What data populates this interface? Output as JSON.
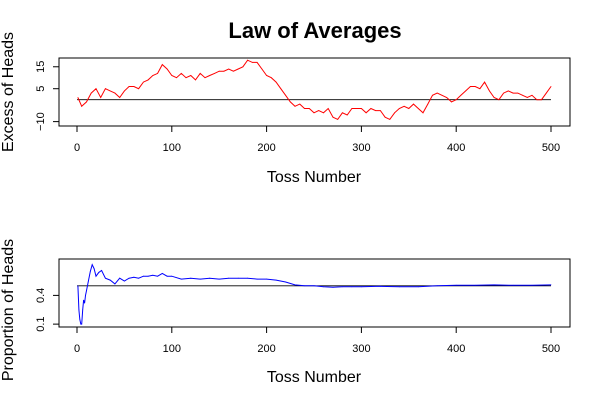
{
  "chart_data": [
    {
      "type": "line",
      "title": "Law of Averages",
      "xlabel": "Toss Number",
      "ylabel": "Excess of Heads",
      "xlim": [
        0,
        500
      ],
      "ylim": [
        -12,
        19
      ],
      "x_ticks": [
        0,
        100,
        200,
        300,
        400,
        500
      ],
      "y_ticks": [
        -10,
        5,
        15
      ],
      "reference_line": 0,
      "series": [
        {
          "color": "#ff0000",
          "x": [
            1,
            5,
            10,
            15,
            20,
            25,
            30,
            35,
            40,
            45,
            50,
            55,
            60,
            65,
            70,
            75,
            80,
            85,
            90,
            95,
            100,
            105,
            110,
            115,
            120,
            125,
            130,
            135,
            140,
            145,
            150,
            155,
            160,
            165,
            170,
            175,
            180,
            185,
            190,
            195,
            200,
            205,
            210,
            215,
            220,
            225,
            230,
            235,
            240,
            245,
            250,
            255,
            260,
            265,
            270,
            275,
            280,
            285,
            290,
            295,
            300,
            305,
            310,
            315,
            320,
            325,
            330,
            335,
            340,
            345,
            350,
            355,
            360,
            365,
            370,
            375,
            380,
            385,
            390,
            395,
            400,
            405,
            410,
            415,
            420,
            425,
            430,
            435,
            440,
            445,
            450,
            455,
            460,
            465,
            470,
            475,
            480,
            485,
            490,
            495,
            500
          ],
          "y": [
            1,
            -3,
            -1,
            3,
            5,
            1,
            5,
            4,
            3,
            1,
            4,
            6,
            6,
            5,
            8,
            9,
            11,
            12,
            16,
            14,
            11,
            10,
            12,
            10,
            11,
            9,
            12,
            10,
            11,
            12,
            13,
            13,
            14,
            13,
            14,
            15,
            18,
            17,
            17,
            14,
            11,
            10,
            8,
            5,
            2,
            -1,
            -3,
            -2,
            -4,
            -4,
            -6,
            -5,
            -6,
            -4,
            -8,
            -9,
            -6,
            -7,
            -4,
            -4,
            -4,
            -6,
            -4,
            -5,
            -5,
            -8,
            -9,
            -6,
            -4,
            -3,
            -4,
            -2,
            -4,
            -6,
            -2,
            2,
            3,
            2,
            1,
            -1,
            0,
            2,
            4,
            6,
            6,
            5,
            8,
            4,
            1,
            0,
            3,
            4,
            3,
            3,
            2,
            1,
            2,
            0,
            0,
            3,
            6
          ]
        }
      ]
    },
    {
      "type": "line",
      "title": "",
      "xlabel": "Toss Number",
      "ylabel": "Proportion of Heads",
      "xlim": [
        0,
        500
      ],
      "ylim": [
        0.07,
        0.78
      ],
      "x_ticks": [
        0,
        100,
        200,
        300,
        400,
        500
      ],
      "y_ticks": [
        0.1,
        0.4
      ],
      "reference_line": 0.5,
      "series": [
        {
          "color": "#0000ff",
          "x": [
            1,
            2,
            3,
            4,
            5,
            6,
            7,
            8,
            9,
            10,
            12,
            14,
            16,
            18,
            20,
            23,
            26,
            30,
            35,
            40,
            45,
            50,
            55,
            60,
            65,
            70,
            75,
            80,
            85,
            90,
            95,
            100,
            110,
            120,
            130,
            140,
            150,
            160,
            170,
            180,
            190,
            200,
            210,
            220,
            230,
            240,
            250,
            260,
            270,
            280,
            290,
            300,
            320,
            340,
            360,
            380,
            400,
            420,
            440,
            460,
            480,
            500
          ],
          "y": [
            0.5,
            0.25,
            0.15,
            0.1,
            0.1,
            0.25,
            0.35,
            0.32,
            0.4,
            0.45,
            0.55,
            0.65,
            0.72,
            0.68,
            0.6,
            0.64,
            0.66,
            0.58,
            0.56,
            0.52,
            0.58,
            0.55,
            0.58,
            0.59,
            0.58,
            0.6,
            0.6,
            0.61,
            0.6,
            0.63,
            0.6,
            0.6,
            0.57,
            0.58,
            0.57,
            0.58,
            0.57,
            0.58,
            0.58,
            0.58,
            0.57,
            0.57,
            0.56,
            0.54,
            0.51,
            0.5,
            0.5,
            0.49,
            0.485,
            0.49,
            0.49,
            0.49,
            0.495,
            0.49,
            0.49,
            0.5,
            0.505,
            0.505,
            0.51,
            0.505,
            0.505,
            0.51
          ]
        }
      ]
    }
  ]
}
